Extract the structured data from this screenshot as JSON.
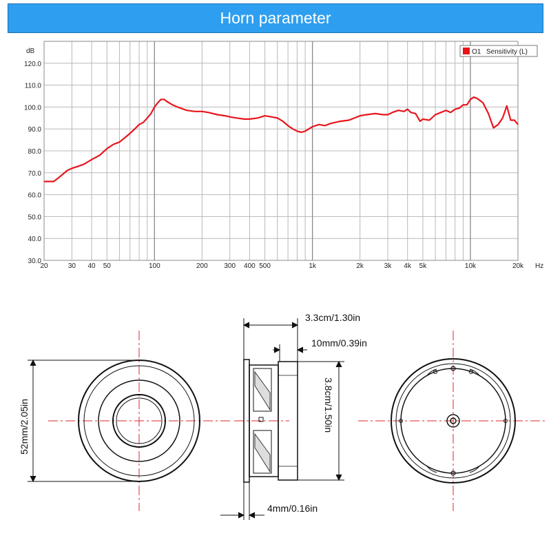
{
  "header": {
    "title": "Horn parameter"
  },
  "colors": {
    "banner": "#2e9ff0",
    "curve": "#e8141c",
    "crosshair": "#d9252b"
  },
  "chart_data": {
    "type": "line",
    "xscale": "log",
    "yunit": "dB",
    "xunit": "Hz",
    "xlim": [
      20,
      20000
    ],
    "ylim": [
      30,
      130
    ],
    "grid": true,
    "legend": {
      "placement": "top-right",
      "marker": "O1",
      "label": "Sensitivity (L)"
    },
    "y_ticks": [
      "30.0",
      "40.0",
      "50.0",
      "60.0",
      "70.0",
      "80.0",
      "90.0",
      "100.0",
      "110.0",
      "120.0"
    ],
    "y_tick_values": [
      30,
      40,
      50,
      60,
      70,
      80,
      90,
      100,
      110,
      120
    ],
    "x_ticks": [
      "20",
      "30",
      "40",
      "50",
      "100",
      "200",
      "300",
      "400",
      "500",
      "1k",
      "2k",
      "3k",
      "4k",
      "5k",
      "10k",
      "20k"
    ],
    "x_tick_values": [
      20,
      30,
      40,
      50,
      100,
      200,
      300,
      400,
      500,
      1000,
      2000,
      3000,
      4000,
      5000,
      10000,
      20000
    ],
    "series": [
      {
        "name": "Sensitivity (L)",
        "x": [
          20,
          23,
          25,
          28,
          30,
          33,
          36,
          40,
          45,
          50,
          55,
          60,
          65,
          70,
          75,
          80,
          85,
          90,
          95,
          100,
          105,
          110,
          115,
          120,
          130,
          140,
          160,
          180,
          200,
          220,
          250,
          280,
          300,
          330,
          370,
          400,
          450,
          500,
          550,
          600,
          650,
          700,
          750,
          800,
          850,
          900,
          1000,
          1100,
          1200,
          1300,
          1500,
          1700,
          2000,
          2200,
          2500,
          2800,
          3000,
          3200,
          3500,
          3800,
          4000,
          4200,
          4500,
          4800,
          5000,
          5500,
          6000,
          6500,
          7000,
          7500,
          8000,
          8500,
          9000,
          9500,
          10000,
          10500,
          11000,
          12000,
          13000,
          14000,
          15000,
          16000,
          17000,
          18000,
          19000,
          20000
        ],
        "values": [
          66,
          66,
          68,
          71,
          72,
          73,
          74,
          76,
          78,
          81,
          83,
          84,
          86,
          88,
          90,
          92,
          93,
          95,
          97,
          100,
          102,
          103.5,
          103.5,
          102.5,
          101,
          100,
          98.5,
          98,
          98,
          97.5,
          96.5,
          96,
          95.5,
          95,
          94.5,
          94.5,
          95,
          96,
          95.5,
          95,
          93.5,
          91.5,
          90,
          89,
          88.5,
          89,
          91,
          92,
          91.5,
          92.5,
          93.5,
          94,
          96,
          96.5,
          97,
          96.5,
          96.5,
          97.5,
          98.5,
          98,
          99,
          97.5,
          97,
          93.5,
          94.5,
          94,
          96.5,
          97.5,
          98.5,
          97.5,
          99,
          99.5,
          101,
          101,
          103.5,
          104.5,
          104,
          102,
          97,
          90.5,
          92,
          95,
          100.5,
          94,
          94,
          92
        ]
      }
    ]
  },
  "dimensions": {
    "overall_depth": "3.3cm/1.30in",
    "magnet_depth": "10mm/0.39in",
    "diameter": "52mm/2.05in",
    "magnet_diameter": "3.8cm/1.50in",
    "flange": "4mm/0.16in"
  }
}
